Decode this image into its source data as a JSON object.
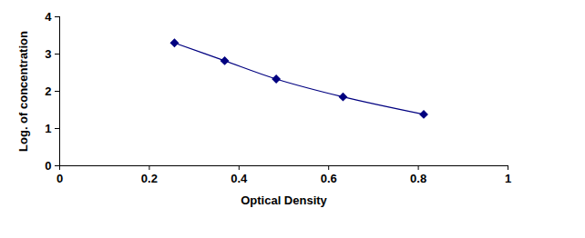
{
  "chart_data": {
    "type": "line",
    "x_label": "Optical Density",
    "y_label": "Log. of concentration",
    "x": [
      0.256,
      0.368,
      0.483,
      0.632,
      0.812
    ],
    "values": [
      3.3,
      2.82,
      2.33,
      1.85,
      1.38
    ],
    "color": "#000080",
    "marker": "diamond",
    "line_style": "solid",
    "xlim": [
      0,
      1
    ],
    "xticks": [
      0,
      0.2,
      0.4,
      0.6,
      0.8,
      1
    ],
    "ylim": [
      0,
      4
    ],
    "yticks": [
      0,
      1,
      2,
      3,
      4
    ],
    "grid": false
  }
}
